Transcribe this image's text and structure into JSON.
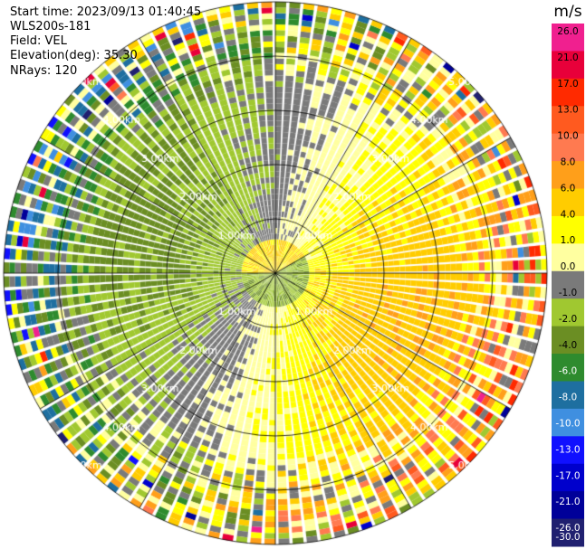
{
  "header": {
    "start_time": "Start time: 2023/09/13 01:40:45",
    "instrument": "WLS200s-181",
    "field": "Field: VEL",
    "elevation": "Elevation(deg): 35.30",
    "nrays": "NRays: 120"
  },
  "colorbar": {
    "unit": "m/s",
    "tick_labels": [
      "26.0",
      "21.0",
      "17.0",
      "13.0",
      "10.0",
      "8.0",
      "6.0",
      "4.0",
      "1.0",
      "0.0",
      "-1.0",
      "-2.0",
      "-4.0",
      "-6.0",
      "-8.0",
      "-10.0",
      "-13.0",
      "-17.0",
      "-21.0",
      "-26.0",
      "-30.0"
    ],
    "colors": [
      "#f0208f",
      "#e8003a",
      "#ff2a00",
      "#ff5a1f",
      "#ff7a50",
      "#ff9f1a",
      "#ffcc00",
      "#ffff00",
      "#ffffa0",
      "#7a7a7a",
      "#a0c830",
      "#6b8e23",
      "#2e8b2e",
      "#1e6fa0",
      "#3f8fe0",
      "#1010ff",
      "#0000cc",
      "#000099",
      "#202070"
    ]
  },
  "chart_data": {
    "type": "ppi",
    "field": "VEL",
    "units": "m/s",
    "nrays": 120,
    "elevation_deg": 35.3,
    "range_rings_km": [
      1.0,
      2.0,
      3.0,
      4.0,
      5.0
    ],
    "ring_labels": [
      "1.00km",
      "2.00km",
      "3.00km",
      "4.00km",
      "5.00km"
    ],
    "spokes_deg": [
      0,
      30,
      60,
      90,
      120,
      150,
      180,
      210,
      240,
      270,
      300,
      330
    ],
    "vmin": -30.0,
    "vmax": 26.0,
    "pattern_description_values": {
      "near_core_toward_km": 0.6,
      "orange_core_velocity": 6.0,
      "green_core_velocity": -6.0
    }
  }
}
